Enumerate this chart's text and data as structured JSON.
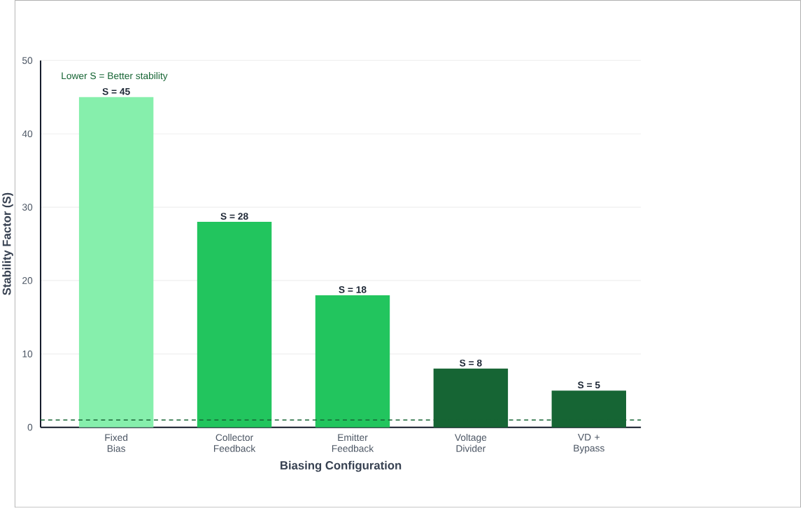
{
  "chart_data": {
    "type": "bar",
    "xlabel": "Biasing Configuration",
    "ylabel": "Stability Factor (S)",
    "categories": [
      "Fixed Bias",
      "Collector Feedback",
      "Emitter Feedback",
      "Voltage Divider",
      "VD + Bypass"
    ],
    "values": [
      45,
      28,
      18,
      8,
      5
    ],
    "colors": [
      "#86efac",
      "#22c55e",
      "#22c55e",
      "#166534",
      "#166534"
    ],
    "value_labels": [
      "S = 45",
      "S = 28",
      "S = 18",
      "S = 8",
      "S = 5"
    ],
    "ylim": [
      0,
      50
    ],
    "yticks": [
      0,
      10,
      20,
      30,
      40,
      50
    ],
    "grid": "y",
    "ref_lines": [
      {
        "axis": "y",
        "value": 1,
        "color": "#166534",
        "line_style": "dashed"
      }
    ],
    "annotations": [
      "Lower S = Better stability"
    ]
  }
}
